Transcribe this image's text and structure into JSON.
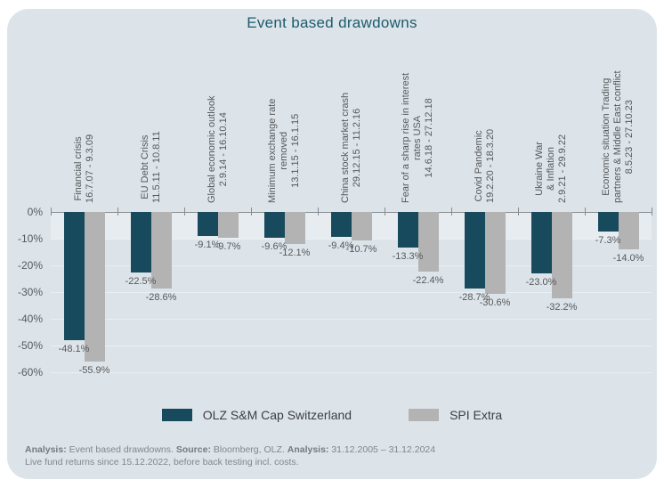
{
  "title": "Event based drawdowns",
  "chart_data": {
    "type": "bar",
    "title": "Event based drawdowns",
    "unit": "percent",
    "ylim": [
      -60,
      0
    ],
    "yticks": [
      0,
      -10,
      -20,
      -30,
      -40,
      -50,
      -60
    ],
    "ytick_labels": [
      "0%",
      "-10%",
      "-20%",
      "-30%",
      "-40%",
      "-50%",
      "-60%"
    ],
    "grid": true,
    "legend_position": "bottom",
    "categories": [
      {
        "name_lines": [
          "Financial crisis"
        ],
        "period": "16.7.07 - 9.3.09"
      },
      {
        "name_lines": [
          "EU Debt Crisis"
        ],
        "period": "11.5.11 - 10.8.11"
      },
      {
        "name_lines": [
          "Global economic outlook"
        ],
        "period": "2.9.14 - 16.10.14"
      },
      {
        "name_lines": [
          "Minimum exchange rate",
          "removed"
        ],
        "period": "13.1.15 - 16.1.15"
      },
      {
        "name_lines": [
          "China stock market crash"
        ],
        "period": "29.12.15 - 11.2.16"
      },
      {
        "name_lines": [
          "Fear of a sharp rise in interest",
          "rates USA"
        ],
        "period": "14.6.18 - 27.12.18"
      },
      {
        "name_lines": [
          "Covid Pandemic"
        ],
        "period": "19.2.20 - 18.3.20"
      },
      {
        "name_lines": [
          "Ukraine War",
          "& Inflation"
        ],
        "period": "2.9.21 - 29.9.22"
      },
      {
        "name_lines": [
          "Economic situation Trading",
          "partners & Middle East conflict"
        ],
        "period": "8.5.23 - 27.10.23"
      }
    ],
    "series": [
      {
        "name": "OLZ S&M Cap Switzerland",
        "color": "#174a5c",
        "values": [
          -48.1,
          -22.5,
          -9.1,
          -9.6,
          -9.4,
          -13.3,
          -28.7,
          -23.0,
          -7.3
        ]
      },
      {
        "name": "SPI Extra",
        "color": "#b3b3b3",
        "values": [
          -55.9,
          -28.6,
          -9.7,
          -12.1,
          -10.7,
          -22.4,
          -30.6,
          -32.2,
          -14.0
        ]
      }
    ]
  },
  "footnotes": {
    "line1_segments": [
      {
        "text": "Analysis:",
        "bold": true
      },
      {
        "text": " Event based drawdowns. ",
        "bold": false
      },
      {
        "text": "Source:",
        "bold": true
      },
      {
        "text": " Bloomberg, OLZ. ",
        "bold": false
      },
      {
        "text": "Analysis:",
        "bold": true
      },
      {
        "text": " 31.12.2005 – 31.12.2024",
        "bold": false
      }
    ],
    "line2": "Live fund returns since 15.12.2022, before back testing incl. costs."
  },
  "colors": {
    "accent_teal": "#174a5c",
    "benchmark_gray": "#b3b3b3",
    "panel_background": "#dce4ea",
    "title_text": "#1c5a6c"
  }
}
